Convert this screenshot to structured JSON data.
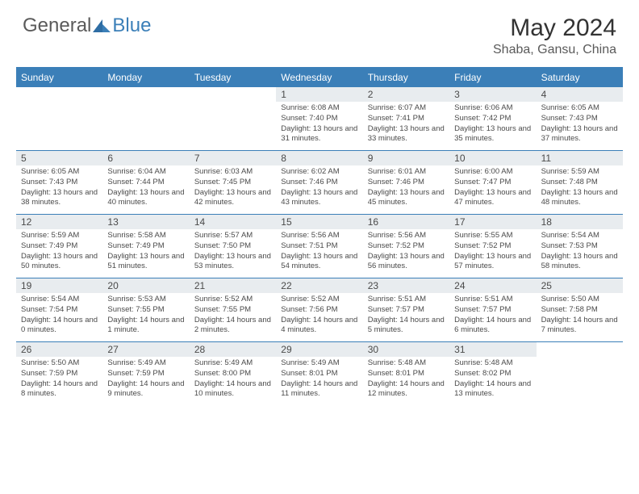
{
  "logo": {
    "general": "General",
    "blue": "Blue"
  },
  "title": "May 2024",
  "location": "Shaba, Gansu, China",
  "colors": {
    "header_blue": "#3b7fb8",
    "daynum_bg": "#e8ecef",
    "text_dark": "#333333",
    "text_mid": "#5a5a5a",
    "text_cell": "#4a4a4a",
    "white": "#ffffff"
  },
  "weekdays": [
    "Sunday",
    "Monday",
    "Tuesday",
    "Wednesday",
    "Thursday",
    "Friday",
    "Saturday"
  ],
  "weeks": [
    [
      {
        "n": "",
        "sr": "",
        "ss": "",
        "dl": ""
      },
      {
        "n": "",
        "sr": "",
        "ss": "",
        "dl": ""
      },
      {
        "n": "",
        "sr": "",
        "ss": "",
        "dl": ""
      },
      {
        "n": "1",
        "sr": "Sunrise: 6:08 AM",
        "ss": "Sunset: 7:40 PM",
        "dl": "Daylight: 13 hours and 31 minutes."
      },
      {
        "n": "2",
        "sr": "Sunrise: 6:07 AM",
        "ss": "Sunset: 7:41 PM",
        "dl": "Daylight: 13 hours and 33 minutes."
      },
      {
        "n": "3",
        "sr": "Sunrise: 6:06 AM",
        "ss": "Sunset: 7:42 PM",
        "dl": "Daylight: 13 hours and 35 minutes."
      },
      {
        "n": "4",
        "sr": "Sunrise: 6:05 AM",
        "ss": "Sunset: 7:43 PM",
        "dl": "Daylight: 13 hours and 37 minutes."
      }
    ],
    [
      {
        "n": "5",
        "sr": "Sunrise: 6:05 AM",
        "ss": "Sunset: 7:43 PM",
        "dl": "Daylight: 13 hours and 38 minutes."
      },
      {
        "n": "6",
        "sr": "Sunrise: 6:04 AM",
        "ss": "Sunset: 7:44 PM",
        "dl": "Daylight: 13 hours and 40 minutes."
      },
      {
        "n": "7",
        "sr": "Sunrise: 6:03 AM",
        "ss": "Sunset: 7:45 PM",
        "dl": "Daylight: 13 hours and 42 minutes."
      },
      {
        "n": "8",
        "sr": "Sunrise: 6:02 AM",
        "ss": "Sunset: 7:46 PM",
        "dl": "Daylight: 13 hours and 43 minutes."
      },
      {
        "n": "9",
        "sr": "Sunrise: 6:01 AM",
        "ss": "Sunset: 7:46 PM",
        "dl": "Daylight: 13 hours and 45 minutes."
      },
      {
        "n": "10",
        "sr": "Sunrise: 6:00 AM",
        "ss": "Sunset: 7:47 PM",
        "dl": "Daylight: 13 hours and 47 minutes."
      },
      {
        "n": "11",
        "sr": "Sunrise: 5:59 AM",
        "ss": "Sunset: 7:48 PM",
        "dl": "Daylight: 13 hours and 48 minutes."
      }
    ],
    [
      {
        "n": "12",
        "sr": "Sunrise: 5:59 AM",
        "ss": "Sunset: 7:49 PM",
        "dl": "Daylight: 13 hours and 50 minutes."
      },
      {
        "n": "13",
        "sr": "Sunrise: 5:58 AM",
        "ss": "Sunset: 7:49 PM",
        "dl": "Daylight: 13 hours and 51 minutes."
      },
      {
        "n": "14",
        "sr": "Sunrise: 5:57 AM",
        "ss": "Sunset: 7:50 PM",
        "dl": "Daylight: 13 hours and 53 minutes."
      },
      {
        "n": "15",
        "sr": "Sunrise: 5:56 AM",
        "ss": "Sunset: 7:51 PM",
        "dl": "Daylight: 13 hours and 54 minutes."
      },
      {
        "n": "16",
        "sr": "Sunrise: 5:56 AM",
        "ss": "Sunset: 7:52 PM",
        "dl": "Daylight: 13 hours and 56 minutes."
      },
      {
        "n": "17",
        "sr": "Sunrise: 5:55 AM",
        "ss": "Sunset: 7:52 PM",
        "dl": "Daylight: 13 hours and 57 minutes."
      },
      {
        "n": "18",
        "sr": "Sunrise: 5:54 AM",
        "ss": "Sunset: 7:53 PM",
        "dl": "Daylight: 13 hours and 58 minutes."
      }
    ],
    [
      {
        "n": "19",
        "sr": "Sunrise: 5:54 AM",
        "ss": "Sunset: 7:54 PM",
        "dl": "Daylight: 14 hours and 0 minutes."
      },
      {
        "n": "20",
        "sr": "Sunrise: 5:53 AM",
        "ss": "Sunset: 7:55 PM",
        "dl": "Daylight: 14 hours and 1 minute."
      },
      {
        "n": "21",
        "sr": "Sunrise: 5:52 AM",
        "ss": "Sunset: 7:55 PM",
        "dl": "Daylight: 14 hours and 2 minutes."
      },
      {
        "n": "22",
        "sr": "Sunrise: 5:52 AM",
        "ss": "Sunset: 7:56 PM",
        "dl": "Daylight: 14 hours and 4 minutes."
      },
      {
        "n": "23",
        "sr": "Sunrise: 5:51 AM",
        "ss": "Sunset: 7:57 PM",
        "dl": "Daylight: 14 hours and 5 minutes."
      },
      {
        "n": "24",
        "sr": "Sunrise: 5:51 AM",
        "ss": "Sunset: 7:57 PM",
        "dl": "Daylight: 14 hours and 6 minutes."
      },
      {
        "n": "25",
        "sr": "Sunrise: 5:50 AM",
        "ss": "Sunset: 7:58 PM",
        "dl": "Daylight: 14 hours and 7 minutes."
      }
    ],
    [
      {
        "n": "26",
        "sr": "Sunrise: 5:50 AM",
        "ss": "Sunset: 7:59 PM",
        "dl": "Daylight: 14 hours and 8 minutes."
      },
      {
        "n": "27",
        "sr": "Sunrise: 5:49 AM",
        "ss": "Sunset: 7:59 PM",
        "dl": "Daylight: 14 hours and 9 minutes."
      },
      {
        "n": "28",
        "sr": "Sunrise: 5:49 AM",
        "ss": "Sunset: 8:00 PM",
        "dl": "Daylight: 14 hours and 10 minutes."
      },
      {
        "n": "29",
        "sr": "Sunrise: 5:49 AM",
        "ss": "Sunset: 8:01 PM",
        "dl": "Daylight: 14 hours and 11 minutes."
      },
      {
        "n": "30",
        "sr": "Sunrise: 5:48 AM",
        "ss": "Sunset: 8:01 PM",
        "dl": "Daylight: 14 hours and 12 minutes."
      },
      {
        "n": "31",
        "sr": "Sunrise: 5:48 AM",
        "ss": "Sunset: 8:02 PM",
        "dl": "Daylight: 14 hours and 13 minutes."
      },
      {
        "n": "",
        "sr": "",
        "ss": "",
        "dl": ""
      }
    ]
  ]
}
